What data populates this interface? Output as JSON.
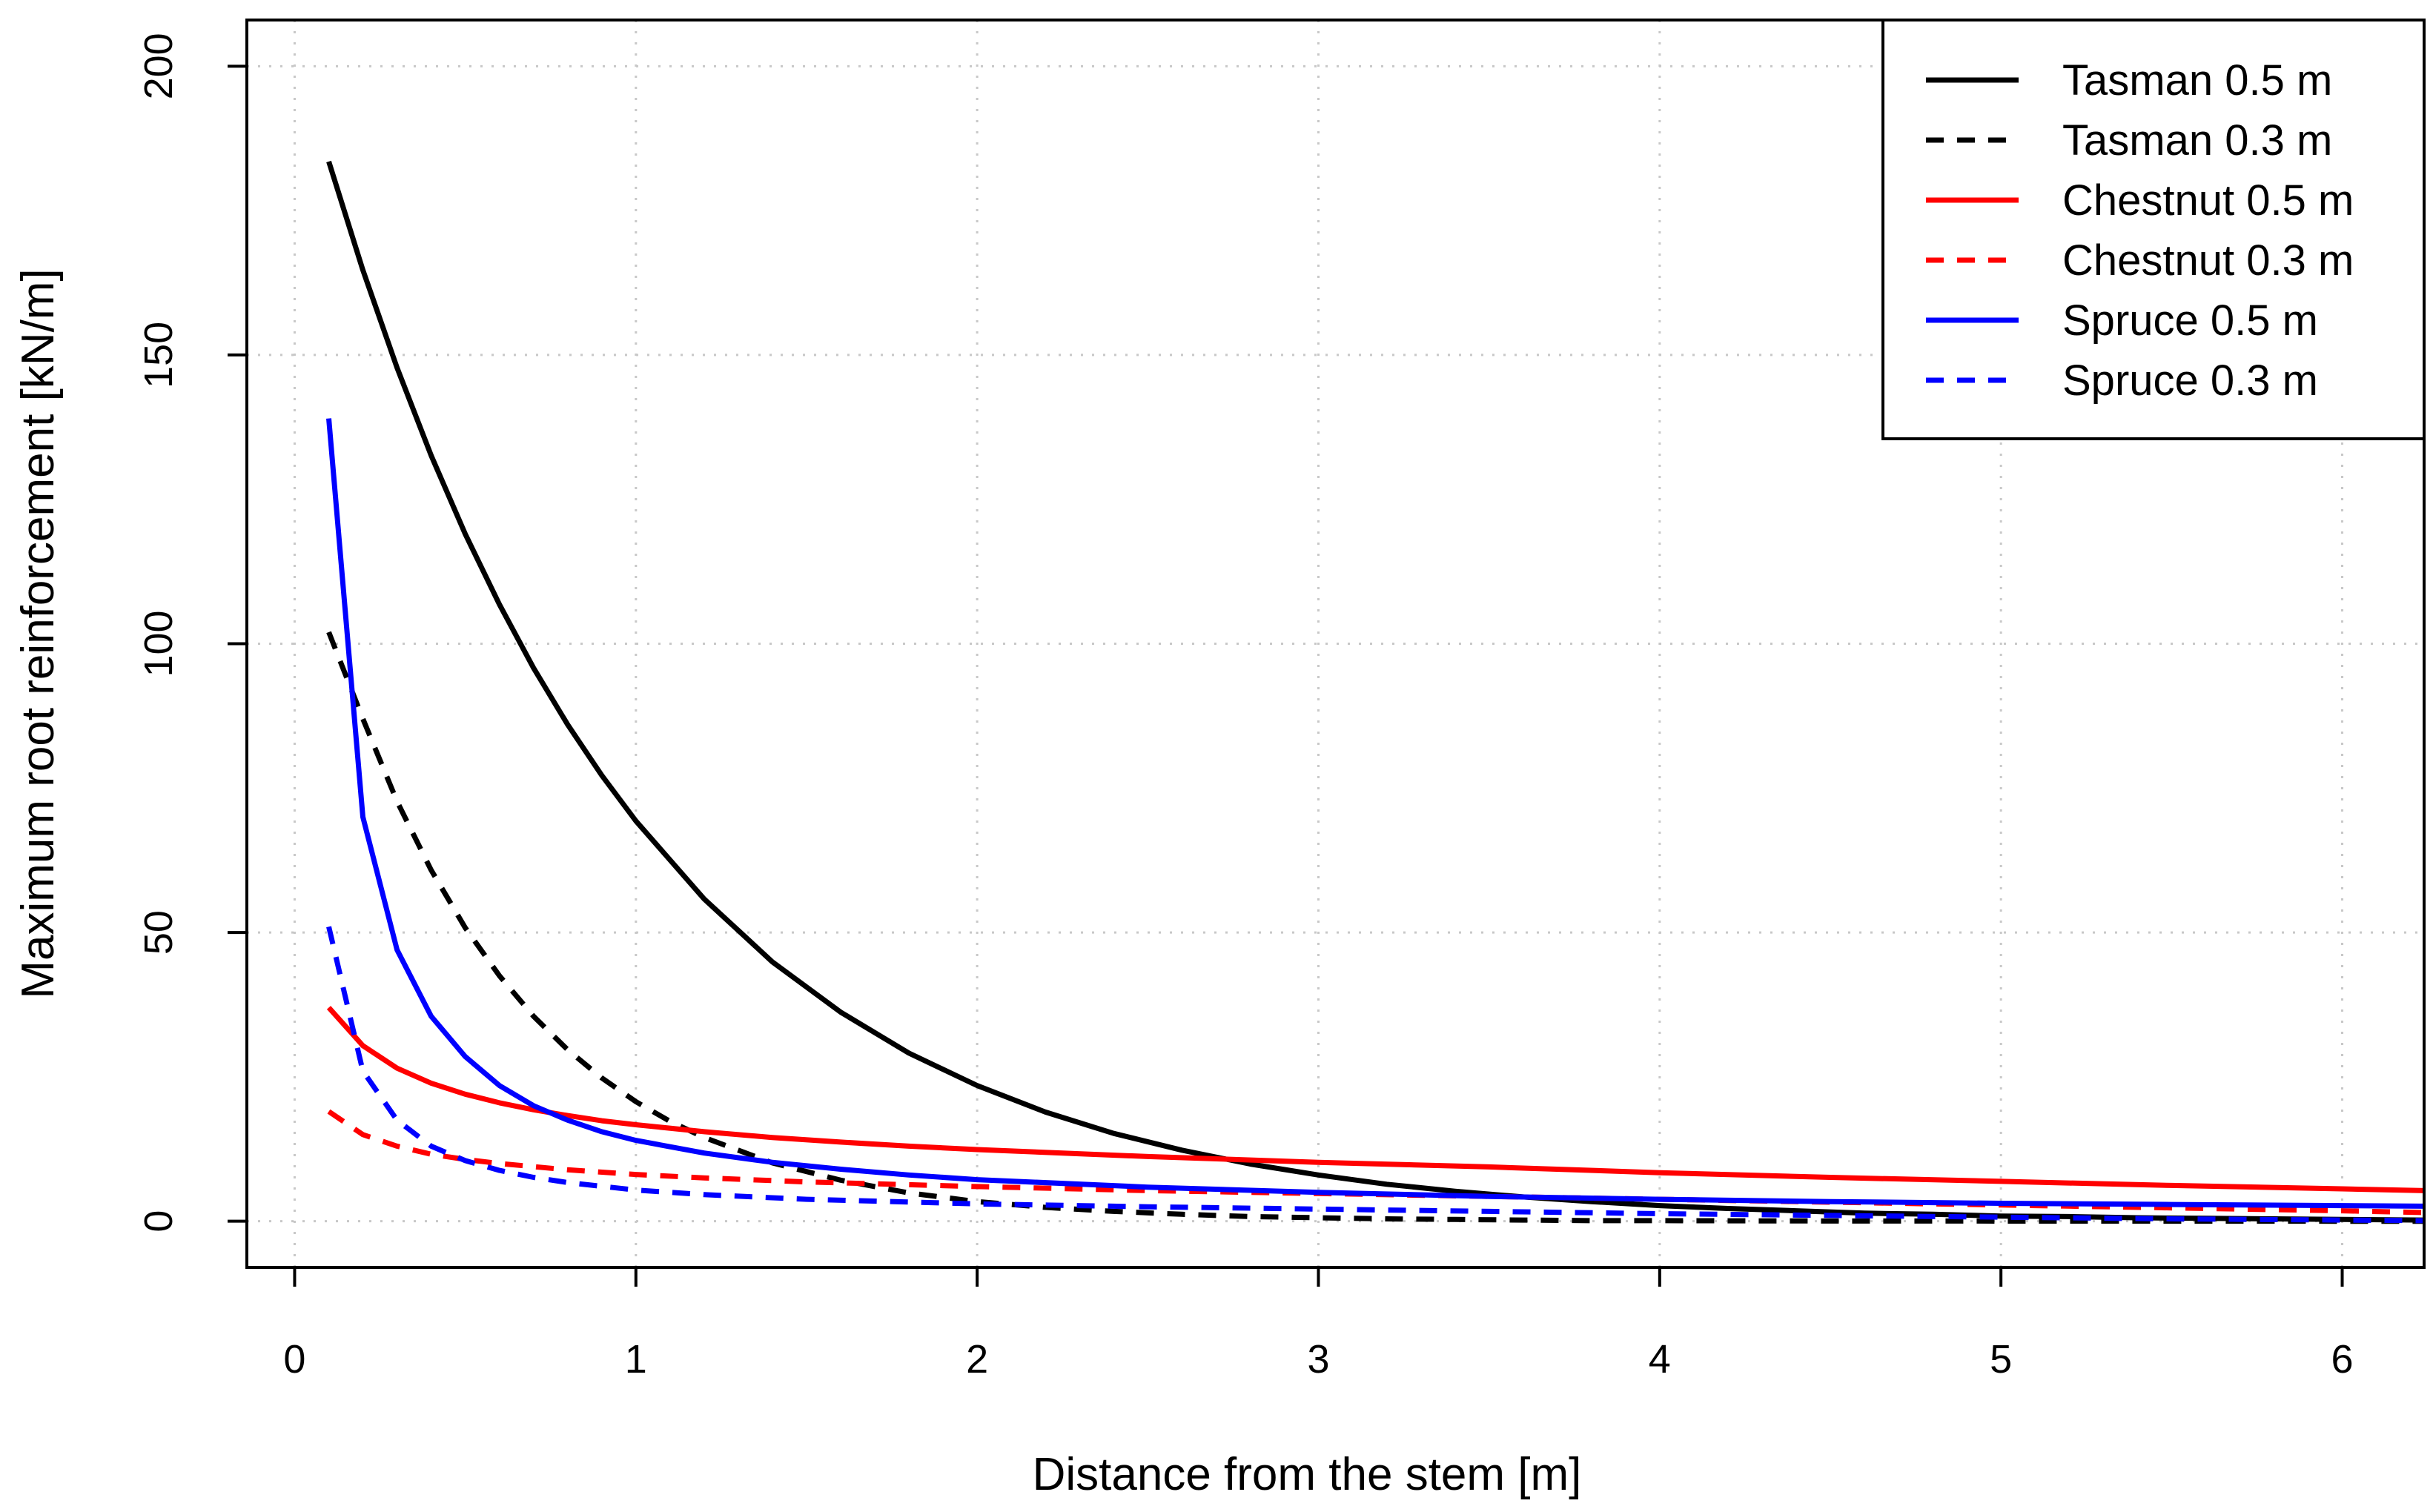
{
  "chart_data": {
    "type": "line",
    "title": "",
    "xlabel": "Distance from the stem [m]",
    "ylabel": "Maximum root reinforcement [kN/m]",
    "xlim": [
      -0.14,
      6.24
    ],
    "ylim": [
      -8,
      208
    ],
    "xticks": [
      "0",
      "1",
      "2",
      "3",
      "4",
      "5",
      "6"
    ],
    "yticks": [
      "0",
      "50",
      "100",
      "150",
      "200"
    ],
    "grid": true,
    "legend_position": "top-right",
    "series": [
      {
        "name": "Tasman 0.5 m",
        "color": "#000000",
        "dash": "solid",
        "x": [
          0.1,
          0.2,
          0.3,
          0.4,
          0.5,
          0.6,
          0.7,
          0.8,
          0.9,
          1.0,
          1.2,
          1.4,
          1.6,
          1.8,
          2.0,
          2.2,
          2.4,
          2.6,
          2.8,
          3.0,
          3.2,
          3.4,
          3.6,
          3.8,
          4.0,
          4.2,
          4.4,
          4.6,
          4.8,
          5.0,
          5.2,
          5.4,
          5.6,
          5.8,
          6.0,
          6.24
        ],
        "y": [
          183.5,
          164.7,
          147.8,
          132.6,
          119.0,
          106.8,
          95.8,
          86.0,
          77.2,
          69.3,
          55.8,
          44.9,
          36.2,
          29.1,
          23.5,
          18.9,
          15.2,
          12.3,
          9.9,
          8.0,
          6.4,
          5.2,
          4.2,
          3.4,
          2.7,
          2.2,
          1.8,
          1.4,
          1.2,
          0.9,
          0.8,
          0.6,
          0.5,
          0.4,
          0.3,
          0.2
        ]
      },
      {
        "name": "Tasman 0.3 m",
        "color": "#000000",
        "dash": "dashed",
        "x": [
          0.1,
          0.2,
          0.3,
          0.4,
          0.5,
          0.6,
          0.7,
          0.8,
          0.9,
          1.0,
          1.1,
          1.2,
          1.4,
          1.6,
          1.8,
          2.0,
          2.2,
          2.4,
          2.6,
          2.8,
          3.0,
          3.2,
          3.4,
          3.6,
          3.8,
          4.0,
          4.4,
          4.8,
          5.2,
          5.6,
          6.0,
          6.24
        ],
        "y": [
          102.0,
          87.0,
          72.7,
          60.8,
          50.8,
          42.5,
          35.5,
          29.7,
          24.8,
          20.7,
          17.3,
          14.5,
          10.1,
          7.1,
          4.9,
          3.4,
          2.4,
          1.7,
          1.2,
          0.8,
          0.6,
          0.4,
          0.3,
          0.2,
          0.1,
          0.1,
          0.05,
          0.03,
          0.02,
          0.01,
          0.0,
          0.0
        ]
      },
      {
        "name": "Chestnut 0.5 m",
        "color": "#ff0000",
        "dash": "solid",
        "x": [
          0.1,
          0.2,
          0.3,
          0.4,
          0.5,
          0.6,
          0.7,
          0.8,
          0.9,
          1.0,
          1.2,
          1.4,
          1.6,
          1.8,
          2.0,
          2.5,
          3.0,
          3.5,
          4.0,
          4.5,
          5.0,
          5.5,
          6.0,
          6.24
        ],
        "y": [
          37.0,
          30.4,
          26.5,
          23.9,
          22.0,
          20.5,
          19.3,
          18.3,
          17.4,
          16.7,
          15.5,
          14.5,
          13.7,
          13.0,
          12.4,
          11.2,
          10.2,
          9.4,
          8.4,
          7.6,
          6.9,
          6.2,
          5.6,
          5.3
        ]
      },
      {
        "name": "Chestnut 0.3 m",
        "color": "#ff0000",
        "dash": "dashed",
        "x": [
          0.1,
          0.2,
          0.3,
          0.4,
          0.5,
          0.6,
          0.8,
          1.0,
          1.2,
          1.5,
          2.0,
          2.5,
          3.0,
          3.5,
          4.0,
          4.5,
          5.0,
          5.5,
          6.0,
          6.24
        ],
        "y": [
          19.0,
          15.0,
          13.0,
          11.6,
          10.7,
          10.0,
          8.9,
          8.1,
          7.5,
          6.8,
          6.0,
          5.3,
          4.8,
          4.3,
          3.8,
          3.3,
          2.8,
          2.3,
          1.8,
          1.5
        ]
      },
      {
        "name": "Spruce 0.5 m",
        "color": "#0000ff",
        "dash": "solid",
        "x": [
          0.1,
          0.2,
          0.3,
          0.4,
          0.5,
          0.6,
          0.7,
          0.8,
          0.9,
          1.0,
          1.2,
          1.4,
          1.6,
          1.8,
          2.0,
          2.5,
          3.0,
          3.5,
          4.0,
          4.5,
          5.0,
          5.5,
          6.0,
          6.24
        ],
        "y": [
          139.0,
          70.0,
          47.0,
          35.5,
          28.5,
          23.5,
          20.0,
          17.5,
          15.5,
          14.0,
          11.8,
          10.2,
          9.0,
          8.0,
          7.2,
          5.9,
          5.0,
          4.3,
          3.8,
          3.4,
          3.1,
          2.9,
          2.7,
          2.6
        ]
      },
      {
        "name": "Spruce 0.3 m",
        "color": "#0000ff",
        "dash": "dashed",
        "x": [
          0.1,
          0.2,
          0.3,
          0.4,
          0.5,
          0.6,
          0.7,
          0.8,
          1.0,
          1.2,
          1.5,
          2.0,
          2.5,
          3.0,
          3.5,
          4.0,
          4.5,
          5.0,
          5.5,
          6.0,
          6.24
        ],
        "y": [
          51.0,
          26.0,
          17.5,
          13.0,
          10.5,
          8.8,
          7.6,
          6.7,
          5.4,
          4.6,
          3.8,
          3.0,
          2.5,
          2.1,
          1.7,
          1.3,
          1.0,
          0.7,
          0.4,
          0.2,
          0.1
        ]
      }
    ]
  }
}
